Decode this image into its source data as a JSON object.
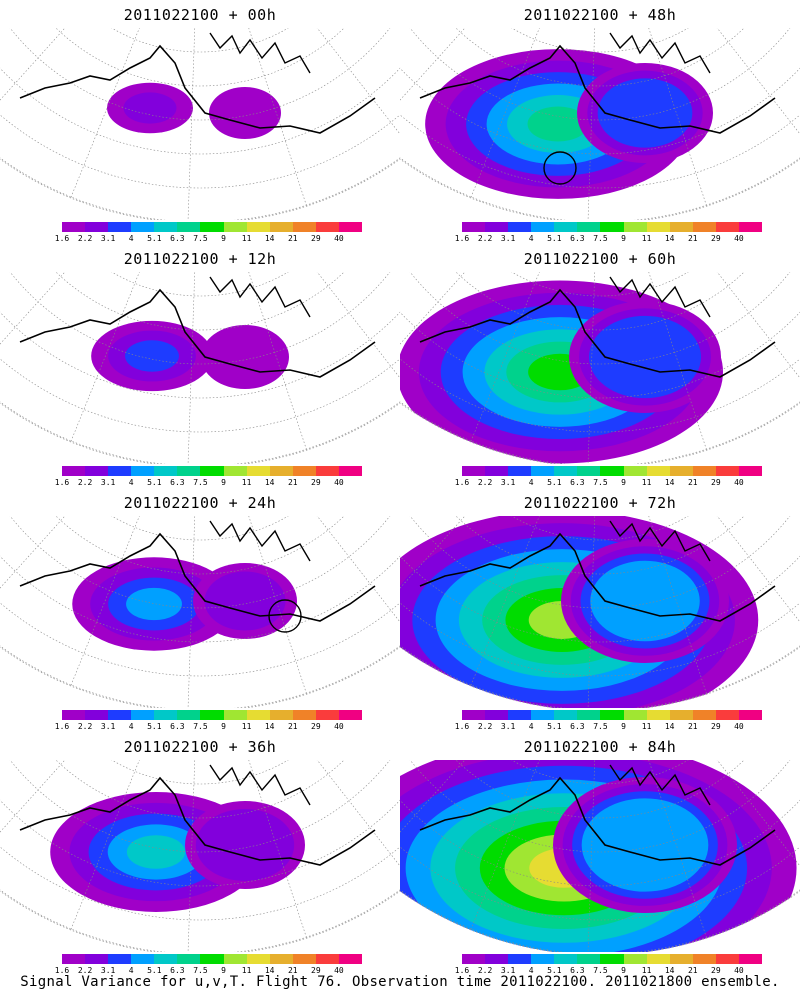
{
  "panels": [
    {
      "title": "2011022100 + 00h",
      "level": 0,
      "circle": false
    },
    {
      "title": "2011022100 + 48h",
      "level": 4,
      "circle": true
    },
    {
      "title": "2011022100 + 12h",
      "level": 1,
      "circle": false
    },
    {
      "title": "2011022100 + 60h",
      "level": 5,
      "circle": false
    },
    {
      "title": "2011022100 + 24h",
      "level": 2,
      "circle": true
    },
    {
      "title": "2011022100 + 72h",
      "level": 6,
      "circle": false
    },
    {
      "title": "2011022100 + 36h",
      "level": 3,
      "circle": false
    },
    {
      "title": "2011022100 + 84h",
      "level": 7,
      "circle": false
    }
  ],
  "colorbar": {
    "colors": [
      "#a000c8",
      "#8200dc",
      "#1e3cff",
      "#00a0ff",
      "#00c8c8",
      "#00d28c",
      "#00dc00",
      "#a0e632",
      "#e6dc32",
      "#e6af2d",
      "#f08228",
      "#fa3c3c",
      "#f00082"
    ],
    "labels": [
      "1.6",
      "2.2",
      "3.1",
      "4",
      "5.1",
      "6.3",
      "7.5",
      "9",
      "11",
      "14",
      "21",
      "29",
      "40"
    ]
  },
  "footer": "Signal Variance for u,v,T. Flight 76. Observation time 2011022100. 2011021800 ensemble."
}
